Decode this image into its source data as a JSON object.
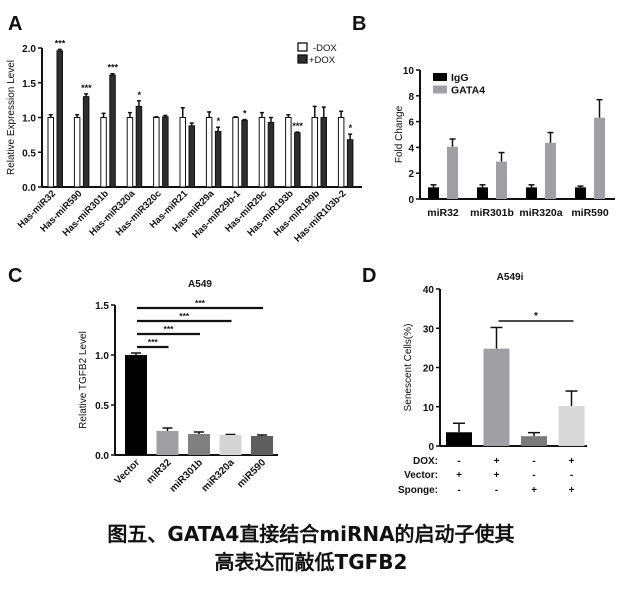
{
  "caption": {
    "line1": "图五、GATA4直接结合miRNA的启动子使其",
    "line2": "高表达而敲低TGFB2"
  },
  "chart_data": [
    {
      "panel": "A",
      "type": "bar",
      "title": "",
      "ylabel": "Relative Expression Level",
      "xlabel": "",
      "ylim": [
        0,
        2.0
      ],
      "yticks": [
        "0.0",
        "0.5",
        "1.0",
        "1.5",
        "2.0"
      ],
      "legend_placement": "top-right",
      "categories": [
        "Has-miR32",
        "Has-miR590",
        "Has-miR301b",
        "Has-miR320a",
        "Has-miR320c",
        "Has-miR21",
        "Has-miR29a",
        "Has-miR29b-1",
        "Has-miR29c",
        "Has-miR193b",
        "Has-miR199b",
        "Has-miR103b-2"
      ],
      "series": [
        {
          "name": "-DOX",
          "color": "#ffffff",
          "values": [
            1.0,
            1.0,
            1.0,
            1.0,
            1.0,
            1.0,
            1.0,
            1.0,
            1.0,
            1.0,
            1.0,
            1.0
          ],
          "errors": [
            0.04,
            0.04,
            0.06,
            0.07,
            0.01,
            0.14,
            0.08,
            0.01,
            0.07,
            0.04,
            0.16,
            0.09
          ]
        },
        {
          "name": "+DOX",
          "color": "#2e2e2e",
          "values": [
            1.96,
            1.3,
            1.61,
            1.16,
            1.01,
            0.88,
            0.8,
            0.96,
            0.93,
            0.78,
            1.0,
            0.68
          ],
          "errors": [
            0.02,
            0.04,
            0.02,
            0.08,
            0.02,
            0.04,
            0.06,
            0.01,
            0.07,
            0.01,
            0.15,
            0.08
          ]
        }
      ],
      "significance": [
        "***",
        "***",
        "***",
        "*",
        "",
        "",
        "*",
        "*",
        "",
        "***",
        "",
        "*"
      ]
    },
    {
      "panel": "B",
      "type": "bar",
      "title": "",
      "ylabel": "Fold Change",
      "xlabel": "",
      "ylim": [
        0,
        10
      ],
      "yticks": [
        "0",
        "2",
        "4",
        "6",
        "8",
        "10"
      ],
      "legend_placement": "top-left",
      "categories": [
        "miR32",
        "miR301b",
        "miR320a",
        "miR590"
      ],
      "series": [
        {
          "name": "IgG",
          "color": "#000000",
          "values": [
            0.9,
            0.9,
            0.9,
            0.9
          ],
          "errors": [
            0.2,
            0.2,
            0.2,
            0.1
          ]
        },
        {
          "name": "GATA4",
          "color": "#a0a0a4",
          "values": [
            4.05,
            2.9,
            4.35,
            6.3
          ],
          "errors": [
            0.6,
            0.7,
            0.8,
            1.4
          ]
        }
      ]
    },
    {
      "panel": "C",
      "type": "bar",
      "title": "A549",
      "ylabel": "Relative TGFB2 Level",
      "xlabel": "",
      "ylim": [
        0,
        1.5
      ],
      "yticks": [
        "0.0",
        "0.5",
        "1.0",
        "1.5"
      ],
      "categories": [
        "Vector",
        "miR32",
        "miR301b",
        "miR320a",
        "miR590"
      ],
      "values": [
        1.0,
        0.24,
        0.21,
        0.2,
        0.19
      ],
      "errors": [
        0.02,
        0.03,
        0.02,
        0.005,
        0.01
      ],
      "colors": [
        "#000000",
        "#a0a0a4",
        "#808080",
        "#d4d4d4",
        "#5e5e5e"
      ],
      "comparisons": [
        {
          "from": 0,
          "to": 1,
          "label": "***"
        },
        {
          "from": 0,
          "to": 2,
          "label": "***"
        },
        {
          "from": 0,
          "to": 3,
          "label": "***"
        },
        {
          "from": 0,
          "to": 4,
          "label": "***"
        }
      ]
    },
    {
      "panel": "D",
      "type": "bar",
      "title": "A549i",
      "ylabel": "Senescent Cells(%)",
      "xlabel": "",
      "ylim": [
        0,
        40
      ],
      "yticks": [
        "0",
        "10",
        "20",
        "30",
        "40"
      ],
      "values": [
        3.5,
        24.8,
        2.5,
        10.2
      ],
      "errors": [
        2.3,
        5.4,
        0.9,
        3.8
      ],
      "colors": [
        "#000000",
        "#a0a0a4",
        "#7a7a7a",
        "#d8d8d8"
      ],
      "conditions": [
        {
          "label": "DOX:",
          "marks": [
            "-",
            "+",
            "-",
            "+"
          ]
        },
        {
          "label": "Vector:",
          "marks": [
            "+",
            "+",
            "-",
            "-"
          ]
        },
        {
          "label": "Sponge:",
          "marks": [
            "-",
            "-",
            "+",
            "+"
          ]
        }
      ],
      "comparisons": [
        {
          "from": 1,
          "to": 3,
          "label": "*"
        }
      ]
    }
  ]
}
